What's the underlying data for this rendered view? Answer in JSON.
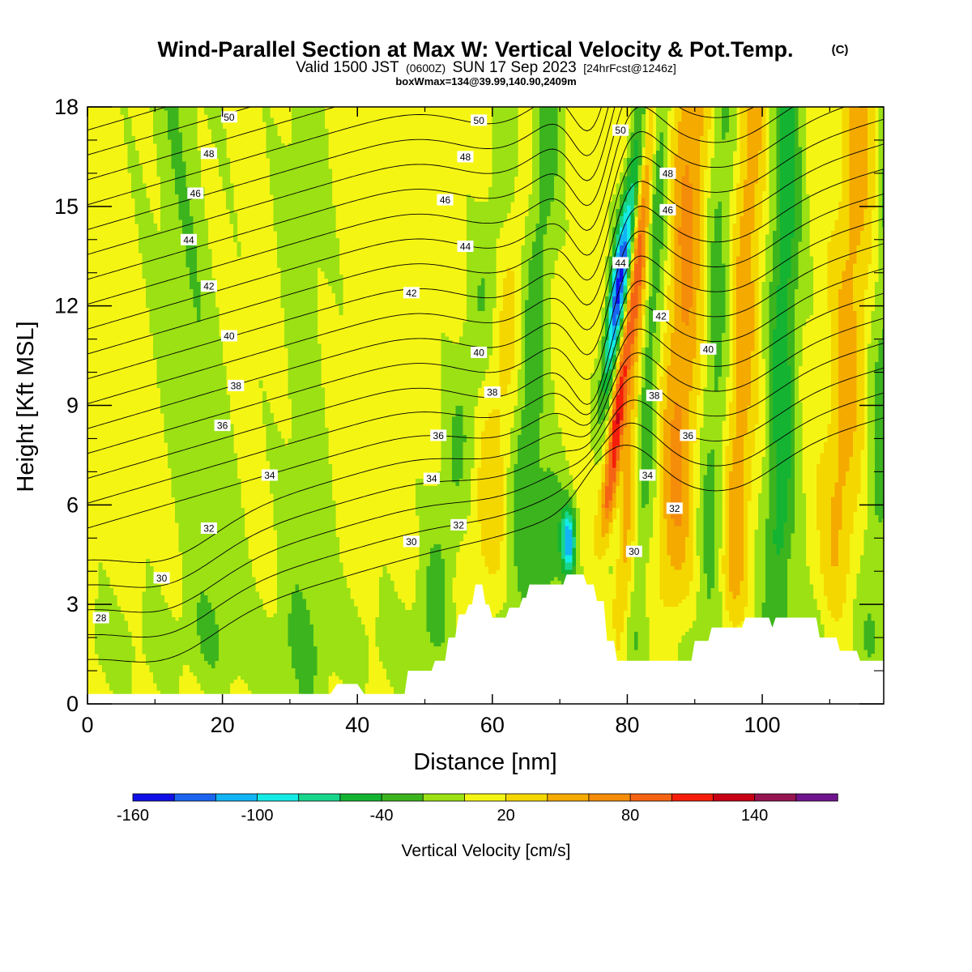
{
  "header": {
    "title_main": "Wind-Parallel Section at Max W: Vertical Velocity & Pot.Temp.",
    "title_c": "(C)",
    "line2_a": "Valid 1500 JST",
    "line2_b": "(0600Z)",
    "line2_c": "SUN 17 Sep 2023",
    "line2_d": "[24hrFcst@1246z]",
    "line3": "boxWmax=134@39.99,140.90,2409m"
  },
  "chart_data": {
    "type": "heatmap",
    "title": "Wind-Parallel Section at Max W: Vertical Velocity & Pot.Temp.",
    "xlabel": "Distance [nm]",
    "ylabel": "Height [Kft MSL]",
    "xlim": [
      0,
      118
    ],
    "ylim": [
      0,
      18
    ],
    "x_ticks": [
      "0",
      "20",
      "40",
      "60",
      "80",
      "100"
    ],
    "y_ticks": [
      "0",
      "3",
      "6",
      "9",
      "12",
      "15",
      "18"
    ],
    "colorbar": {
      "label": "Vertical Velocity [cm/s]",
      "levels": [
        -160,
        -140,
        -120,
        -100,
        -80,
        -60,
        -40,
        -20,
        0,
        20,
        40,
        60,
        80,
        100,
        120,
        140,
        160,
        180
      ],
      "tick_labels": [
        "-160",
        "-100",
        "-40",
        "20",
        "80",
        "140"
      ],
      "colors": [
        "#1010e6",
        "#1a64f0",
        "#12b4f5",
        "#14ebe6",
        "#18d68c",
        "#14b432",
        "#3cb41e",
        "#9be114",
        "#f5f514",
        "#f5d700",
        "#f5aa00",
        "#f58c0a",
        "#f56414",
        "#f51e0a",
        "#c80014",
        "#961450",
        "#6e148c"
      ]
    },
    "terrain_kft": [
      [
        0,
        0.3
      ],
      [
        36,
        0.3
      ],
      [
        37,
        0.6
      ],
      [
        40,
        0.6
      ],
      [
        41,
        0.3
      ],
      [
        47,
        0.3
      ],
      [
        47.5,
        1.0
      ],
      [
        51,
        1.0
      ],
      [
        51.5,
        1.3
      ],
      [
        53,
        1.3
      ],
      [
        53.5,
        2.0
      ],
      [
        54.5,
        2.0
      ],
      [
        55,
        2.7
      ],
      [
        56,
        2.7
      ],
      [
        56.5,
        3.0
      ],
      [
        57,
        3.0
      ],
      [
        57.5,
        3.6
      ],
      [
        58.5,
        3.6
      ],
      [
        59,
        3.0
      ],
      [
        59.5,
        3.0
      ],
      [
        60,
        2.6
      ],
      [
        62,
        2.6
      ],
      [
        62.5,
        2.9
      ],
      [
        64,
        2.9
      ],
      [
        64.5,
        3.2
      ],
      [
        65,
        3.2
      ],
      [
        65.5,
        3.6
      ],
      [
        70.5,
        3.6
      ],
      [
        71,
        3.9
      ],
      [
        73.5,
        3.9
      ],
      [
        74,
        3.6
      ],
      [
        75,
        3.6
      ],
      [
        75.5,
        3.1
      ],
      [
        76.5,
        3.1
      ],
      [
        77,
        1.9
      ],
      [
        78,
        1.9
      ],
      [
        78.5,
        1.3
      ],
      [
        89.5,
        1.3
      ],
      [
        90,
        1.9
      ],
      [
        92,
        1.9
      ],
      [
        92.5,
        2.3
      ],
      [
        97,
        2.3
      ],
      [
        97.5,
        2.6
      ],
      [
        101,
        2.6
      ],
      [
        101.5,
        2.3
      ],
      [
        102,
        2.6
      ],
      [
        108,
        2.6
      ],
      [
        108.5,
        2.0
      ],
      [
        111,
        2.0
      ],
      [
        111.5,
        1.6
      ],
      [
        114,
        1.6
      ],
      [
        114.5,
        1.3
      ],
      [
        118,
        1.3
      ]
    ],
    "theta_contours": [
      {
        "value": 28,
        "label": "28",
        "lx": 2,
        "ly": 2.6
      },
      {
        "value": 30,
        "label": "30",
        "lx": 11,
        "ly": 3.8
      },
      {
        "value": 32,
        "label": "32",
        "lx": 18,
        "ly": 5.3
      },
      {
        "value": 34,
        "label": "34",
        "lx": 27,
        "ly": 6.9
      },
      {
        "value": 36,
        "label": "36",
        "lx": 20,
        "ly": 8.4
      },
      {
        "value": 38,
        "label": "38",
        "lx": 22,
        "ly": 9.6
      },
      {
        "value": 40,
        "label": "40",
        "lx": 21,
        "ly": 11.1
      },
      {
        "value": 42,
        "label": "42",
        "lx": 18,
        "ly": 12.6
      },
      {
        "value": 44,
        "label": "44",
        "lx": 15,
        "ly": 14.0
      },
      {
        "value": 46,
        "label": "46",
        "lx": 16,
        "ly": 15.4
      },
      {
        "value": 48,
        "label": "48",
        "lx": 18,
        "ly": 16.6
      },
      {
        "value": 50,
        "label": "50",
        "lx": 21,
        "ly": 17.7
      }
    ],
    "theta_labels": [
      {
        "label": "50",
        "x": 58,
        "y": 17.6
      },
      {
        "label": "48",
        "x": 56,
        "y": 16.5
      },
      {
        "label": "46",
        "x": 53,
        "y": 15.2
      },
      {
        "label": "44",
        "x": 56,
        "y": 13.8
      },
      {
        "label": "42",
        "x": 48,
        "y": 12.4
      },
      {
        "label": "40",
        "x": 58,
        "y": 10.6
      },
      {
        "label": "38",
        "x": 60,
        "y": 9.4
      },
      {
        "label": "36",
        "x": 52,
        "y": 8.1
      },
      {
        "label": "34",
        "x": 51,
        "y": 6.8
      },
      {
        "label": "32",
        "x": 55,
        "y": 5.4
      },
      {
        "label": "30",
        "x": 48,
        "y": 4.9
      },
      {
        "label": "50",
        "x": 79,
        "y": 17.3
      },
      {
        "label": "48",
        "x": 86,
        "y": 16.0
      },
      {
        "label": "46",
        "x": 86,
        "y": 14.9
      },
      {
        "label": "44",
        "x": 79,
        "y": 13.3
      },
      {
        "label": "42",
        "x": 85,
        "y": 11.7
      },
      {
        "label": "40",
        "x": 92,
        "y": 10.7
      },
      {
        "label": "38",
        "x": 84,
        "y": 9.3
      },
      {
        "label": "36",
        "x": 89,
        "y": 8.1
      },
      {
        "label": "34",
        "x": 83,
        "y": 6.9
      },
      {
        "label": "32",
        "x": 87,
        "y": 5.9
      },
      {
        "label": "30",
        "x": 81,
        "y": 4.6
      }
    ]
  }
}
